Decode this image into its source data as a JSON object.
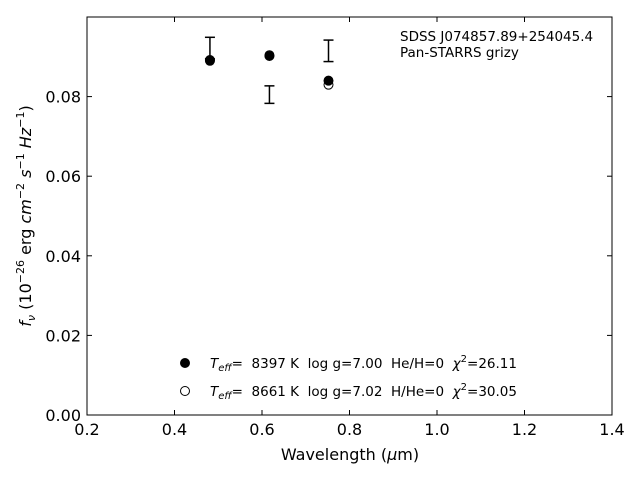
{
  "chart_data": {
    "type": "scatter",
    "xlabel": "Wavelength (μm)",
    "ylabel": "f_ν (10^−26 erg cm^−2 s^−1 Hz^−1)",
    "xlim": [
      0.2,
      1.4
    ],
    "ylim": [
      0.0,
      0.1
    ],
    "xticks": [
      "0.2",
      "0.4",
      "0.6",
      "0.8",
      "1.0",
      "1.2",
      "1.4"
    ],
    "yticks": [
      "0.00",
      "0.02",
      "0.04",
      "0.06",
      "0.08"
    ],
    "grid": false,
    "annotation": [
      "SDSS J074857.89+254045.4",
      "Pan-STARRS grizy"
    ],
    "observed": {
      "x": [
        0.481,
        0.617,
        0.752
      ],
      "y": [
        0.0922,
        0.0805,
        0.0915
      ],
      "err": [
        0.0027,
        0.0022,
        0.0027
      ]
    },
    "series": [
      {
        "name": "T_eff= 8397 K log g=7.00 He/H=0 χ²=26.11",
        "marker": "filled-circle",
        "x": [
          0.481,
          0.617,
          0.752
        ],
        "y": [
          0.089,
          0.0902,
          0.084
        ]
      },
      {
        "name": "T_eff= 8661 K log g=7.02 H/He=0 χ²=30.05",
        "marker": "open-circle",
        "x": [
          0.481,
          0.617,
          0.752
        ],
        "y": [
          0.0892,
          0.0904,
          0.083
        ]
      }
    ],
    "legend": {
      "placement": "lower-center",
      "entries": [
        {
          "teff": "T",
          "teff_sub": "eff",
          "text": "=  8397 K  log g=7.00  He/H=0  ",
          "chi": "χ",
          "chi_sup": "2",
          "chi_val": "=26.11"
        },
        {
          "teff": "T",
          "teff_sub": "eff",
          "text": "=  8661 K  log g=7.02  H/He=0  ",
          "chi": "χ",
          "chi_sup": "2",
          "chi_val": "=30.05"
        }
      ]
    }
  }
}
